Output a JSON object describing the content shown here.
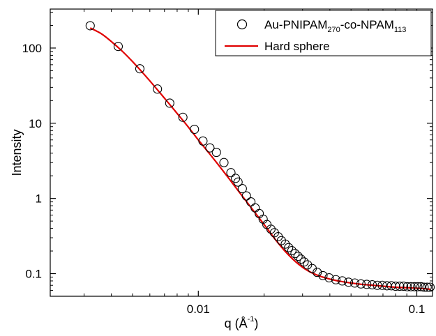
{
  "chart_data": {
    "type": "scatter",
    "x_scale": "log",
    "y_scale": "log",
    "xlim": [
      0.0021,
      0.118
    ],
    "ylim": [
      0.05,
      330
    ],
    "xlabel_main": "q (Å",
    "xlabel_sup": "-1",
    "xlabel_end": ")",
    "ylabel": "Intensity",
    "x_ticks": [
      {
        "value": 0.01,
        "label": "0.01"
      },
      {
        "value": 0.1,
        "label": "0.1"
      }
    ],
    "y_ticks": [
      {
        "value": 0.1,
        "label": "0.1"
      },
      {
        "value": 1,
        "label": "1"
      },
      {
        "value": 10,
        "label": "10"
      },
      {
        "value": 100,
        "label": "100"
      }
    ],
    "grid": false,
    "legend_position": "top-right",
    "series": [
      {
        "name_main": "Au-PNIPAM",
        "name_sub1": "270",
        "name_mid": "-co-NPAM",
        "name_sub2": "113",
        "marker": "open-circle",
        "color": "#000000",
        "x": [
          0.0032,
          0.0043,
          0.0054,
          0.0065,
          0.0074,
          0.0085,
          0.0096,
          0.0105,
          0.0113,
          0.0121,
          0.0131,
          0.0141,
          0.0148,
          0.0152,
          0.0159,
          0.0166,
          0.0174,
          0.0182,
          0.019,
          0.0198,
          0.0206,
          0.0215,
          0.0223,
          0.0232,
          0.024,
          0.025,
          0.0259,
          0.0268,
          0.0277,
          0.0286,
          0.0295,
          0.0305,
          0.0316,
          0.0332,
          0.035,
          0.0372,
          0.0397,
          0.0426,
          0.0456,
          0.0487,
          0.052,
          0.0555,
          0.059,
          0.0625,
          0.066,
          0.0695,
          0.073,
          0.0765,
          0.08,
          0.0835,
          0.087,
          0.0905,
          0.094,
          0.0975,
          0.101,
          0.1045,
          0.108,
          0.1115,
          0.115
        ],
        "y": [
          198,
          105,
          53,
          28.5,
          18.5,
          12.0,
          8.3,
          5.8,
          4.7,
          4.1,
          3.0,
          2.2,
          1.85,
          1.65,
          1.35,
          1.08,
          0.9,
          0.75,
          0.63,
          0.53,
          0.45,
          0.39,
          0.35,
          0.31,
          0.275,
          0.247,
          0.222,
          0.202,
          0.185,
          0.17,
          0.156,
          0.143,
          0.131,
          0.117,
          0.104,
          0.094,
          0.088,
          0.083,
          0.08,
          0.077,
          0.075,
          0.073,
          0.072,
          0.071,
          0.07,
          0.07,
          0.069,
          0.069,
          0.068,
          0.068,
          0.068,
          0.067,
          0.067,
          0.067,
          0.067,
          0.067,
          0.066,
          0.066,
          0.066
        ]
      },
      {
        "name_main": "Hard sphere",
        "type": "line",
        "color": "#e00000",
        "x": [
          0.0032,
          0.0036,
          0.004,
          0.0045,
          0.005,
          0.0056,
          0.0063,
          0.0071,
          0.008,
          0.009,
          0.01,
          0.0112,
          0.0126,
          0.0141,
          0.0158,
          0.0178,
          0.02,
          0.0224,
          0.0251,
          0.0282,
          0.0316,
          0.0355,
          0.0398,
          0.0447,
          0.0501,
          0.0562,
          0.0631,
          0.0708,
          0.0794,
          0.0891,
          0.1,
          0.109,
          0.115
        ],
        "y": [
          185,
          155,
          122,
          90,
          66,
          46,
          31,
          20.5,
          13.5,
          8.9,
          6.0,
          4.0,
          2.6,
          1.7,
          1.1,
          0.7,
          0.45,
          0.29,
          0.195,
          0.14,
          0.11,
          0.094,
          0.085,
          0.079,
          0.075,
          0.072,
          0.07,
          0.068,
          0.066,
          0.065,
          0.064,
          0.063,
          0.062
        ]
      }
    ]
  }
}
